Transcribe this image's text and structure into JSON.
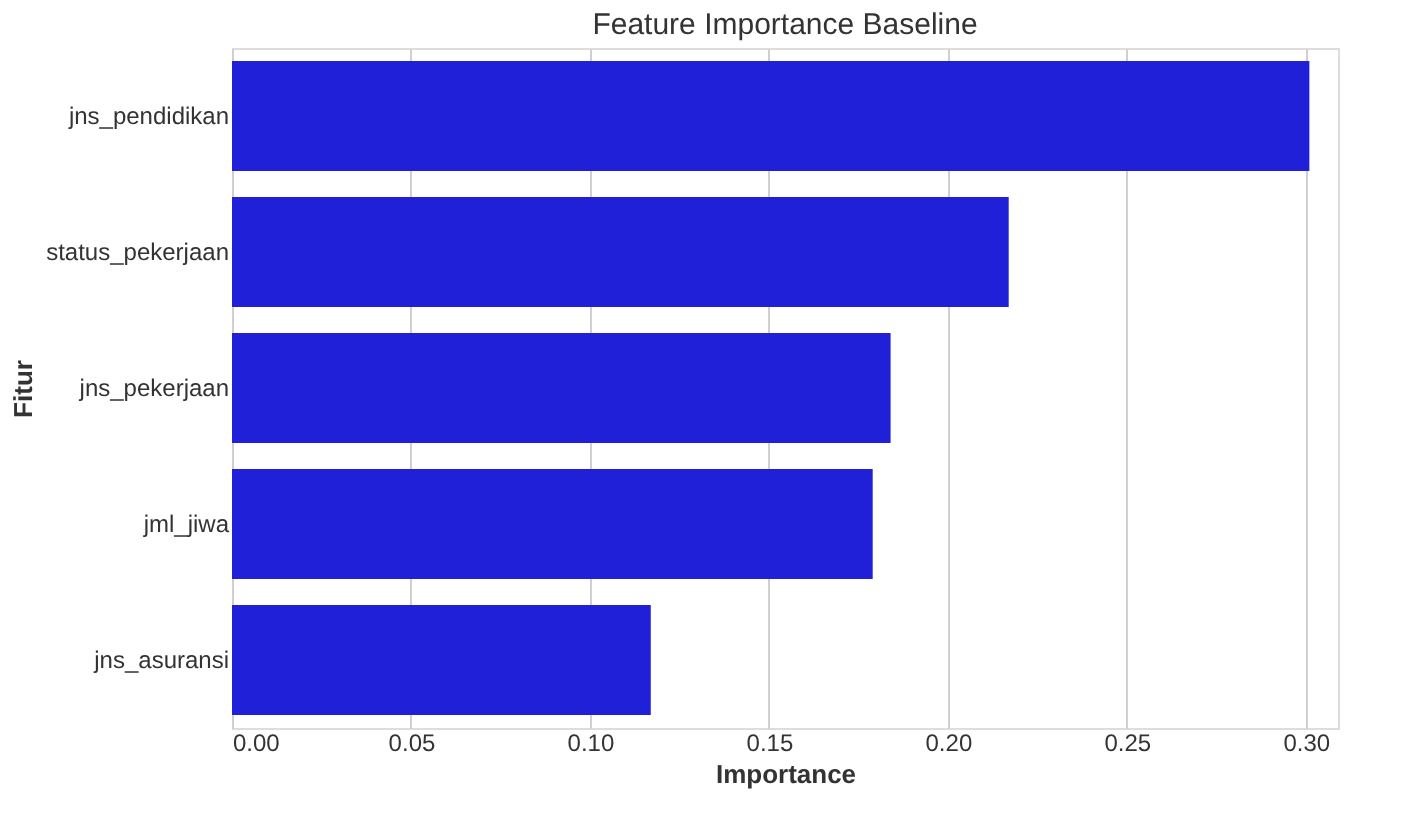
{
  "chart_data": {
    "type": "bar",
    "orientation": "horizontal",
    "title": "Feature Importance Baseline",
    "xlabel": "Importance",
    "ylabel": "Fitur",
    "categories": [
      "jns_pendidikan",
      "status_pekerjaan",
      "jns_pekerjaan",
      "jml_jiwa",
      "jns_asuransi"
    ],
    "values": [
      0.301,
      0.217,
      0.184,
      0.179,
      0.117
    ],
    "color": "#2020d8",
    "xlim": [
      0,
      0.309
    ],
    "xticks": [
      {
        "value": 0,
        "label": "0.00"
      },
      {
        "value": 0.05,
        "label": "0.05"
      },
      {
        "value": 0.1,
        "label": "0.10"
      },
      {
        "value": 0.15,
        "label": "0.15"
      },
      {
        "value": 0.2,
        "label": "0.20"
      },
      {
        "value": 0.25,
        "label": "0.25"
      },
      {
        "value": 0.3,
        "label": "0.30"
      }
    ],
    "grid": "x"
  }
}
